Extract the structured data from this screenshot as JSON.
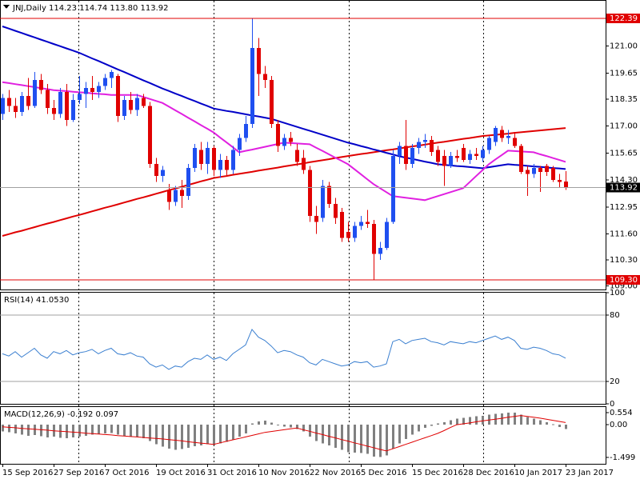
{
  "chart_data": [
    {
      "type": "candlestick",
      "title": "JNJ,Daily  114.23 114.74 113.80 113.92",
      "categories": [
        "15 Sep 2016",
        null,
        null,
        null,
        null,
        null,
        null,
        null,
        "27 Sep 2016",
        null,
        null,
        null,
        null,
        null,
        null,
        null,
        "7 Oct 2016",
        null,
        null,
        null,
        null,
        null,
        null,
        null,
        "19 Oct 2016",
        null,
        null,
        null,
        null,
        null,
        null,
        null,
        "31 Oct 2016",
        null,
        null,
        null,
        null,
        null,
        null,
        null,
        "10 Nov 2016",
        null,
        null,
        null,
        null,
        null,
        null,
        null,
        "22 Nov 2016",
        null,
        null,
        null,
        null,
        null,
        null,
        null,
        "5 Dec 2016",
        null,
        null,
        null,
        null,
        null,
        null,
        null,
        "15 Dec 2016",
        null,
        null,
        null,
        null,
        null,
        null,
        null,
        "28 Dec 2016",
        null,
        null,
        null,
        null,
        null,
        null,
        null,
        "10 Jan 2017",
        null,
        null,
        null,
        null,
        null,
        null,
        null,
        "23 Jan 2017"
      ],
      "open": [
        117.6,
        118.4,
        118.0,
        117.7,
        118.5,
        118.0,
        119.3,
        118.8,
        117.9,
        117.6,
        118.7,
        117.3,
        118.3,
        118.6,
        118.9,
        118.7,
        119.0,
        119.4,
        119.5,
        117.5,
        118.3,
        117.8,
        118.4,
        118.0,
        115.1,
        114.5,
        113.8,
        113.2,
        113.8,
        113.5,
        114.9,
        115.8,
        115.1,
        115.9,
        114.8,
        115.3,
        114.8,
        115.8,
        116.4,
        117.1,
        120.9,
        119.6,
        119.3,
        117.1,
        116.0,
        116.4,
        115.8,
        115.4,
        114.8,
        112.5,
        112.4,
        114.0,
        113.1,
        112.7,
        111.7,
        111.4,
        112.0,
        112.2,
        112.1,
        110.6,
        110.9,
        112.2,
        115.5,
        116.0,
        115.1,
        115.9,
        116.2,
        116.3,
        115.8,
        115.5,
        115.0,
        115.5,
        115.9,
        115.3,
        115.6,
        115.4,
        115.8,
        116.2,
        116.8,
        116.4,
        116.4,
        116.0,
        114.8,
        114.6,
        114.9,
        115.0,
        114.9,
        114.3,
        114.23
      ],
      "high": [
        118.6,
        118.8,
        118.4,
        118.7,
        119.4,
        119.7,
        119.6,
        119.1,
        118.3,
        118.9,
        119.1,
        118.6,
        119.5,
        119.2,
        119.5,
        119.2,
        119.6,
        119.8,
        119.6,
        118.5,
        118.7,
        118.6,
        118.6,
        118.2,
        115.4,
        115.0,
        114.1,
        114.0,
        114.3,
        115.1,
        116.1,
        116.2,
        116.2,
        116.0,
        115.6,
        115.5,
        116.0,
        116.6,
        117.5,
        122.39,
        121.4,
        120.0,
        119.5,
        117.3,
        116.6,
        116.7,
        116.1,
        115.8,
        115.0,
        113.0,
        114.3,
        114.2,
        113.4,
        112.9,
        112.2,
        112.2,
        112.5,
        112.8,
        112.3,
        111.2,
        112.4,
        115.8,
        116.2,
        117.3,
        116.1,
        116.4,
        116.6,
        116.5,
        116.0,
        115.8,
        115.7,
        115.8,
        116.1,
        115.8,
        115.9,
        116.0,
        116.5,
        117.0,
        117.0,
        116.8,
        116.7,
        116.1,
        115.0,
        115.1,
        115.0,
        115.1,
        115.0,
        114.6,
        114.74
      ],
      "low": [
        117.3,
        117.7,
        117.4,
        117.5,
        117.8,
        117.9,
        118.6,
        117.6,
        117.3,
        117.4,
        117.0,
        117.2,
        118.1,
        117.9,
        118.3,
        118.4,
        118.8,
        118.9,
        117.2,
        117.3,
        117.6,
        117.5,
        117.9,
        114.9,
        114.2,
        114.2,
        112.8,
        113.0,
        112.9,
        113.3,
        114.7,
        114.8,
        114.6,
        114.5,
        114.4,
        114.5,
        114.6,
        115.5,
        116.2,
        116.9,
        118.5,
        118.9,
        116.9,
        115.7,
        115.8,
        116.0,
        115.0,
        114.6,
        112.2,
        111.6,
        112.2,
        112.9,
        112.1,
        111.2,
        111.2,
        111.2,
        111.8,
        111.9,
        109.3,
        110.3,
        110.8,
        112.1,
        115.1,
        114.8,
        114.9,
        115.6,
        115.9,
        115.5,
        115.0,
        114.0,
        114.9,
        115.2,
        115.2,
        115.1,
        115.3,
        115.2,
        115.6,
        116.0,
        116.2,
        116.1,
        115.9,
        114.6,
        113.5,
        114.4,
        113.7,
        114.5,
        114.2,
        113.9,
        113.8
      ],
      "close": [
        118.4,
        118.0,
        117.7,
        118.5,
        118.0,
        119.3,
        118.8,
        117.9,
        117.6,
        118.7,
        117.3,
        118.3,
        118.6,
        118.9,
        118.7,
        119.0,
        119.4,
        119.7,
        117.5,
        118.3,
        117.8,
        118.4,
        118.0,
        115.1,
        114.5,
        114.8,
        113.2,
        113.8,
        113.5,
        114.9,
        115.9,
        115.1,
        115.9,
        114.8,
        115.3,
        114.8,
        115.8,
        116.4,
        117.1,
        120.9,
        119.6,
        119.3,
        117.1,
        116.0,
        116.4,
        116.2,
        115.2,
        114.8,
        112.5,
        112.2,
        114.0,
        113.1,
        112.4,
        111.4,
        111.4,
        112.0,
        112.2,
        112.1,
        110.6,
        110.9,
        112.2,
        115.5,
        116.0,
        115.1,
        115.9,
        116.2,
        116.3,
        115.7,
        115.2,
        115.0,
        115.5,
        115.4,
        115.3,
        115.6,
        115.5,
        115.8,
        116.4,
        116.9,
        116.4,
        116.5,
        116.0,
        114.7,
        114.6,
        114.9,
        114.7,
        114.7,
        114.3,
        114.2,
        113.92
      ],
      "up_color": "#1f4ff0",
      "down_color": "#e00000",
      "lines": [
        {
          "color": "#e00000",
          "values": [
            111.5,
            111.59,
            111.68,
            111.76,
            111.85,
            111.94,
            112.03,
            112.12,
            112.2,
            112.29,
            112.38,
            112.47,
            112.55,
            112.64,
            112.73,
            112.82,
            112.91,
            112.99,
            113.08,
            113.17,
            113.26,
            113.35,
            113.43,
            113.52,
            113.61,
            113.7,
            113.79,
            113.87,
            113.96,
            114.05,
            114.14,
            114.23,
            114.31,
            114.4,
            114.45,
            114.5,
            114.56,
            114.61,
            114.66,
            114.71,
            114.77,
            114.82,
            114.87,
            114.92,
            114.98,
            115.03,
            115.08,
            115.13,
            115.19,
            115.24,
            115.29,
            115.34,
            115.4,
            115.45,
            115.5,
            115.55,
            115.6,
            115.64,
            115.69,
            115.74,
            115.79,
            115.83,
            115.88,
            115.93,
            115.98,
            116.02,
            116.07,
            116.12,
            116.17,
            116.21,
            116.26,
            116.31,
            116.36,
            116.4,
            116.45,
            116.5,
            116.53,
            116.56,
            116.59,
            116.62,
            116.66,
            116.69,
            116.72,
            116.75,
            116.78,
            116.81,
            116.84,
            116.87,
            116.9
          ]
        },
        {
          "color": "#0000c8",
          "values": [
            121.99,
            121.88,
            121.77,
            121.66,
            121.55,
            121.44,
            121.33,
            121.22,
            121.11,
            121.0,
            120.89,
            120.78,
            120.67,
            120.53,
            120.39,
            120.26,
            120.12,
            119.98,
            119.84,
            119.71,
            119.57,
            119.43,
            119.29,
            119.16,
            119.02,
            118.88,
            118.76,
            118.63,
            118.51,
            118.38,
            118.26,
            118.13,
            118.01,
            117.88,
            117.82,
            117.76,
            117.71,
            117.65,
            117.59,
            117.53,
            117.48,
            117.42,
            117.36,
            117.26,
            117.16,
            117.06,
            116.96,
            116.86,
            116.77,
            116.67,
            116.57,
            116.47,
            116.37,
            116.27,
            116.17,
            116.09,
            116.0,
            115.92,
            115.83,
            115.75,
            115.66,
            115.58,
            115.49,
            115.42,
            115.36,
            115.29,
            115.22,
            115.16,
            115.09,
            115.06,
            115.03,
            115.0,
            114.98,
            114.95,
            114.92,
            114.89,
            114.94,
            114.99,
            115.04,
            115.09,
            115.06,
            115.04,
            115.01,
            114.98,
            114.96,
            114.93,
            114.9,
            114.88,
            114.85
          ]
        },
        {
          "color": "#e020e0",
          "values": [
            119.2,
            119.15,
            119.1,
            119.05,
            119.0,
            118.95,
            118.9,
            118.85,
            118.8,
            118.77,
            118.75,
            118.72,
            118.69,
            118.67,
            118.64,
            118.61,
            118.59,
            118.56,
            118.56,
            118.56,
            118.56,
            118.56,
            118.46,
            118.36,
            118.26,
            118.16,
            117.98,
            117.79,
            117.61,
            117.42,
            117.24,
            117.05,
            116.87,
            116.68,
            116.43,
            116.19,
            115.94,
            115.69,
            115.76,
            115.82,
            115.89,
            115.96,
            116.03,
            116.1,
            116.17,
            116.15,
            116.13,
            116.11,
            116.09,
            115.92,
            115.76,
            115.59,
            115.42,
            115.26,
            115.09,
            114.84,
            114.59,
            114.34,
            114.09,
            113.89,
            113.69,
            113.49,
            113.45,
            113.41,
            113.37,
            113.33,
            113.29,
            113.39,
            113.49,
            113.59,
            113.69,
            113.79,
            113.89,
            114.19,
            114.49,
            114.79,
            115.09,
            115.32,
            115.54,
            115.77,
            115.75,
            115.73,
            115.71,
            115.69,
            115.59,
            115.5,
            115.4,
            115.31,
            115.21
          ]
        }
      ],
      "hlines": [
        {
          "value": 122.39,
          "color": "#e00000",
          "label_fill": "#e00000"
        },
        {
          "value": 109.3,
          "label": "109.30",
          "color": "#e00000",
          "label_fill": "#e00000"
        },
        {
          "value": 113.92,
          "color": "#a0a0a0",
          "label_fill": "#000000"
        }
      ],
      "ylim": [
        108.82,
        123.27
      ],
      "yticks": [
        {
          "value": 121,
          "label": "121.00"
        },
        119.65,
        118.35,
        {
          "value": 117,
          "label": "117.00"
        },
        115.65,
        {
          "value": 114.3,
          "label": "114.30"
        },
        112.95,
        {
          "value": 111.6,
          "label": "111.60"
        },
        {
          "value": 110.3,
          "label": "110.30"
        },
        {
          "value": 109,
          "label": "109.00"
        }
      ]
    },
    {
      "type": "line",
      "title": "RSI(14) 41.0530",
      "color": "#3a7fd0",
      "values": [
        45,
        43,
        47,
        42,
        46,
        50,
        44,
        41,
        47,
        45,
        48,
        44,
        46,
        47,
        49,
        45,
        48,
        50,
        45,
        44,
        46,
        43,
        42,
        36,
        33,
        35,
        31,
        34,
        33,
        38,
        41,
        40,
        44,
        40,
        42,
        39,
        45,
        49,
        53,
        67,
        60,
        57,
        52,
        46,
        48,
        47,
        44,
        42,
        37,
        35,
        40,
        38,
        36,
        34,
        35,
        38,
        37,
        38,
        33,
        34,
        36,
        56,
        58,
        54,
        57,
        58,
        59,
        56,
        55,
        53,
        56,
        55,
        54,
        56,
        55,
        57,
        59,
        61,
        58,
        60,
        57,
        50,
        49,
        51,
        50,
        48,
        45,
        44,
        41.053
      ],
      "levels": [
        80,
        20
      ],
      "ylim": [
        0,
        100
      ],
      "yticks": [
        100,
        80,
        20,
        0
      ]
    },
    {
      "type": "macd",
      "title": "MACD(12,26,9) -0.192 0.097",
      "histogram_color": "#808080",
      "signal_color": "#e00000",
      "histogram": [
        -0.3,
        -0.35,
        -0.4,
        -0.45,
        -0.5,
        -0.48,
        -0.52,
        -0.58,
        -0.55,
        -0.6,
        -0.62,
        -0.58,
        -0.55,
        -0.5,
        -0.45,
        -0.42,
        -0.4,
        -0.38,
        -0.45,
        -0.5,
        -0.52,
        -0.55,
        -0.62,
        -0.75,
        -0.9,
        -1.0,
        -1.1,
        -1.15,
        -1.12,
        -1.05,
        -0.98,
        -0.95,
        -0.9,
        -0.92,
        -0.85,
        -0.78,
        -0.68,
        -0.55,
        -0.4,
        0.05,
        0.15,
        0.18,
        0.1,
        -0.02,
        -0.08,
        -0.12,
        -0.2,
        -0.3,
        -0.55,
        -0.75,
        -0.85,
        -0.95,
        -1.05,
        -1.15,
        -1.25,
        -1.28,
        -1.3,
        -1.33,
        -1.45,
        -1.48,
        -1.4,
        -1.1,
        -0.85,
        -0.65,
        -0.45,
        -0.3,
        -0.15,
        -0.05,
        0.05,
        0.12,
        0.2,
        0.28,
        0.32,
        0.35,
        0.38,
        0.4,
        0.45,
        0.5,
        0.52,
        0.55,
        0.55,
        0.45,
        0.35,
        0.28,
        0.2,
        0.12,
        0.02,
        -0.1,
        -0.192
      ],
      "signal": [
        -0.1,
        -0.12,
        -0.14,
        -0.17,
        -0.19,
        -0.21,
        -0.23,
        -0.25,
        -0.28,
        -0.3,
        -0.32,
        -0.34,
        -0.36,
        -0.39,
        -0.41,
        -0.43,
        -0.45,
        -0.47,
        -0.5,
        -0.52,
        -0.54,
        -0.56,
        -0.58,
        -0.61,
        -0.63,
        -0.65,
        -0.68,
        -0.71,
        -0.74,
        -0.78,
        -0.81,
        -0.84,
        -0.87,
        -0.9,
        -0.83,
        -0.76,
        -0.69,
        -0.63,
        -0.56,
        -0.49,
        -0.42,
        -0.35,
        -0.31,
        -0.27,
        -0.23,
        -0.19,
        -0.15,
        -0.23,
        -0.3,
        -0.38,
        -0.45,
        -0.53,
        -0.6,
        -0.68,
        -0.75,
        -0.83,
        -0.9,
        -0.98,
        -1.05,
        -1.13,
        -1.2,
        -1.1,
        -1.0,
        -0.9,
        -0.8,
        -0.7,
        -0.6,
        -0.5,
        -0.4,
        -0.27,
        -0.13,
        0.0,
        0.04,
        0.08,
        0.13,
        0.17,
        0.21,
        0.25,
        0.29,
        0.34,
        0.38,
        0.42,
        0.38,
        0.34,
        0.3,
        0.25,
        0.2,
        0.15,
        0.097
      ],
      "ylim": [
        -1.787,
        0.806
      ],
      "yticks": [
        0.554,
        {
          "value": 0,
          "label": "0.00"
        },
        -1.499
      ]
    }
  ]
}
